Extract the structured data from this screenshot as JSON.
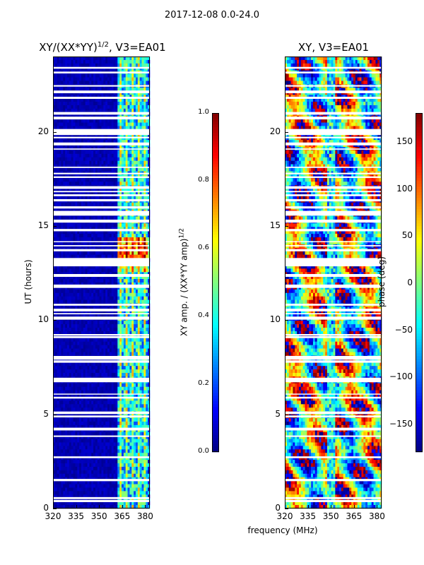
{
  "figure": {
    "suptitle": "2017-12-08 0.0-24.0"
  },
  "chart_data": [
    {
      "type": "heatmap",
      "title": "XY/(XX*YY)",
      "title_superscript": "1/2",
      "title_suffix": ", V3=EA01",
      "xlabel": "",
      "ylabel": "UT (hours)",
      "xlim": [
        320,
        383
      ],
      "ylim": [
        0,
        24
      ],
      "x_ticks": [
        "320",
        "335",
        "350",
        "365",
        "380"
      ],
      "y_ticks": [
        "0",
        "5",
        "10",
        "15",
        "20"
      ],
      "bright_channels_mhz": [
        364,
        368,
        372,
        376,
        380
      ],
      "colorbar": {
        "label": "XY amp. / (XX*YY amp)",
        "label_superscript": "1/2",
        "range": [
          0.0,
          1.0
        ],
        "ticks": [
          "0.0",
          "0.2",
          "0.4",
          "0.6",
          "0.8",
          "1.0"
        ],
        "colormap": "jet"
      }
    },
    {
      "type": "heatmap",
      "title": "XY, V3=EA01",
      "xlabel": "frequency (MHz)",
      "ylabel": "",
      "xlim": [
        320,
        383
      ],
      "ylim": [
        0,
        24
      ],
      "x_ticks": [
        "320",
        "335",
        "350",
        "365",
        "380"
      ],
      "y_ticks": [
        "0",
        "5",
        "10",
        "15",
        "20"
      ],
      "colorbar": {
        "label": "phase (deg)",
        "range": [
          -180,
          180
        ],
        "ticks": [
          "150",
          "100",
          "50",
          "0",
          "−50",
          "−100",
          "−150"
        ],
        "colormap": "jet"
      }
    }
  ]
}
